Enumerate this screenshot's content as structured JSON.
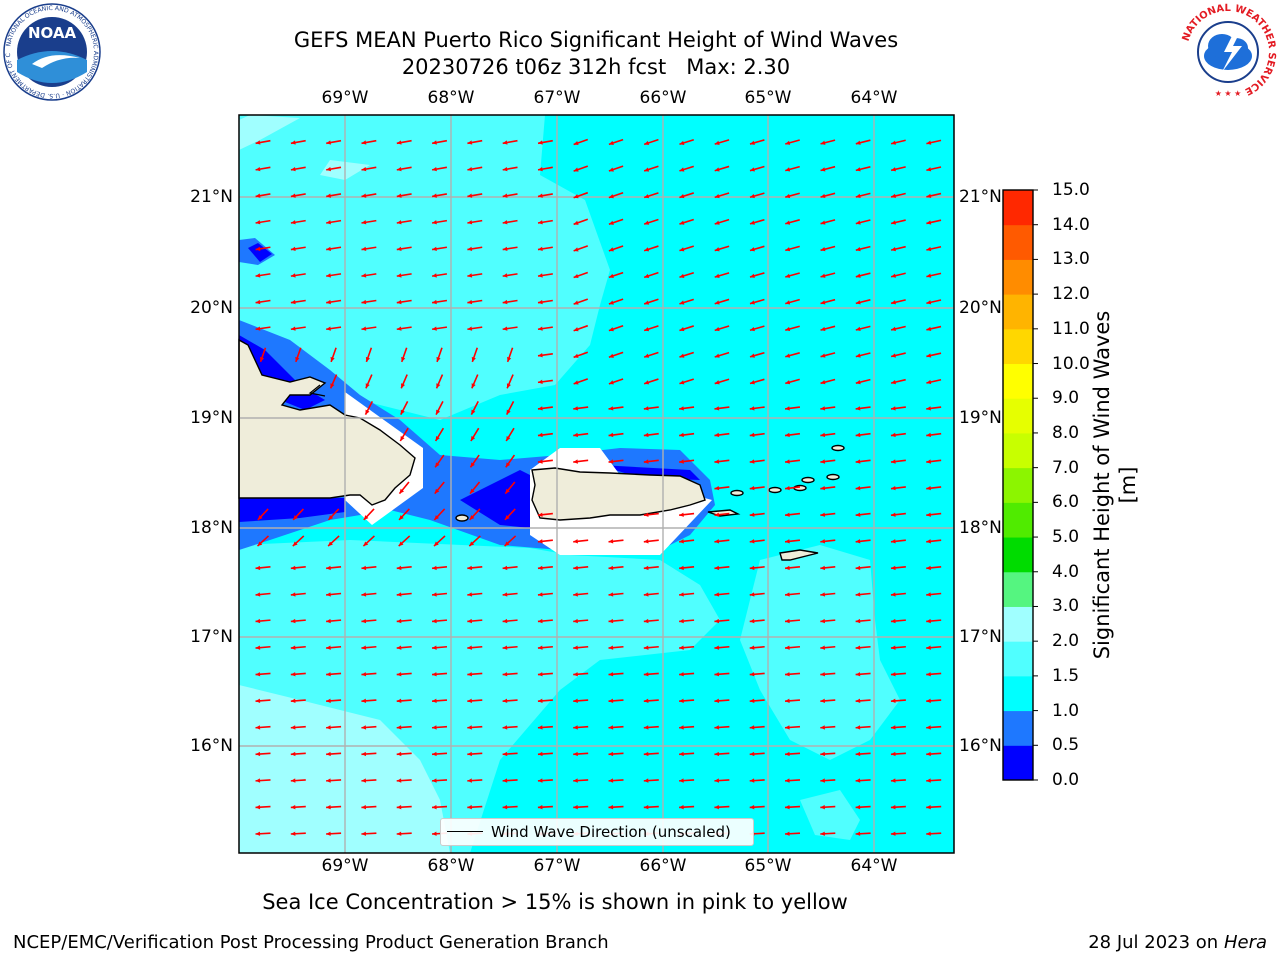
{
  "title": {
    "line1": "GEFS MEAN Puerto Rico Significant Height of Wind Waves",
    "line2": "20230726 t06z 312h fcst   Max: 2.30"
  },
  "axes": {
    "lon_ticks": [
      "69°W",
      "68°W",
      "67°W",
      "66°W",
      "65°W",
      "64°W"
    ],
    "lat_ticks": [
      "21°N",
      "20°N",
      "19°N",
      "18°N",
      "17°N",
      "16°N"
    ]
  },
  "colorbar": {
    "label": "Significant Height of Wind Waves [m]",
    "ticks": [
      "0.0",
      "0.5",
      "1.0",
      "1.5",
      "2.0",
      "3.0",
      "4.0",
      "5.0",
      "6.0",
      "7.0",
      "8.0",
      "9.0",
      "10.0",
      "11.0",
      "12.0",
      "13.0",
      "14.0",
      "15.0"
    ],
    "colors": [
      "#0000ff",
      "#1e78ff",
      "#00ffff",
      "#50ffff",
      "#a0ffff",
      "#55f580",
      "#00dc00",
      "#50eb00",
      "#8cf500",
      "#c8ff00",
      "#e6ff00",
      "#ffff00",
      "#ffd700",
      "#ffb400",
      "#ff8c00",
      "#ff5a00",
      "#ff2800"
    ]
  },
  "legend": {
    "label": "Wind Wave Direction (unscaled)"
  },
  "note": "Sea Ice Concentration > 15% is shown in pink to yellow",
  "footer": {
    "left": "NCEP/EMC/Verification Post Processing Product Generation Branch",
    "right_prefix": "28 Jul 2023 on ",
    "right_italic": "Hera"
  },
  "logos": {
    "noaa_text": "NOAA",
    "noaa_ring": "NATIONAL OCEANIC AND ATMOSPHERIC ADMINISTRATION · U.S. DEPARTMENT OF COMMERCE",
    "nws_ring": "NATIONAL WEATHER SERVICE"
  },
  "colors": {
    "ocean_main": "#00ffff",
    "ocean_light": "#50ffff",
    "ocean_pale": "#a0ffff",
    "coastal_mid": "#1e78ff",
    "coastal_deep": "#0000ff",
    "land": "#efedda",
    "arrow": "#ff0000",
    "grid": "#b0b0b0"
  }
}
